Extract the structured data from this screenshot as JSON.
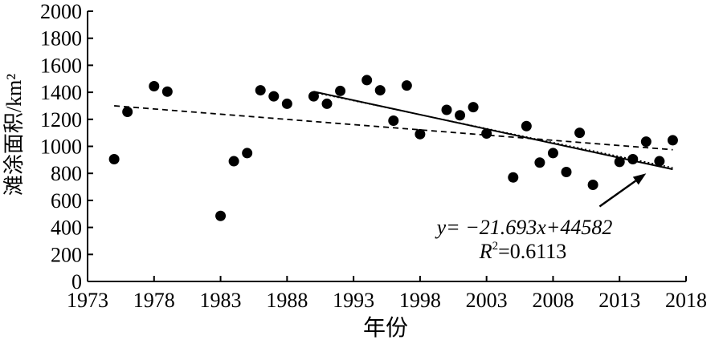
{
  "chart_data": {
    "type": "scatter",
    "xlabel": "年份",
    "ylabel": "滩涂面积/km²",
    "xlim": [
      1973,
      2018
    ],
    "ylim": [
      0,
      2000
    ],
    "x_ticks": [
      1973,
      1978,
      1983,
      1988,
      1993,
      1998,
      2003,
      2008,
      2013,
      2018
    ],
    "y_ticks": [
      0,
      200,
      400,
      600,
      800,
      1000,
      1200,
      1400,
      1600,
      1800,
      2000
    ],
    "grid": false,
    "points": [
      {
        "x": 1975,
        "y": 905
      },
      {
        "x": 1976,
        "y": 1255
      },
      {
        "x": 1978,
        "y": 1445
      },
      {
        "x": 1979,
        "y": 1405
      },
      {
        "x": 1983,
        "y": 485
      },
      {
        "x": 1984,
        "y": 890
      },
      {
        "x": 1985,
        "y": 950
      },
      {
        "x": 1986,
        "y": 1415
      },
      {
        "x": 1987,
        "y": 1370
      },
      {
        "x": 1988,
        "y": 1315
      },
      {
        "x": 1990,
        "y": 1370
      },
      {
        "x": 1991,
        "y": 1315
      },
      {
        "x": 1992,
        "y": 1410
      },
      {
        "x": 1994,
        "y": 1490
      },
      {
        "x": 1995,
        "y": 1415
      },
      {
        "x": 1996,
        "y": 1190
      },
      {
        "x": 1997,
        "y": 1450
      },
      {
        "x": 1998,
        "y": 1090
      },
      {
        "x": 2000,
        "y": 1270
      },
      {
        "x": 2001,
        "y": 1230
      },
      {
        "x": 2002,
        "y": 1290
      },
      {
        "x": 2003,
        "y": 1095
      },
      {
        "x": 2005,
        "y": 770
      },
      {
        "x": 2006,
        "y": 1150
      },
      {
        "x": 2007,
        "y": 880
      },
      {
        "x": 2008,
        "y": 950
      },
      {
        "x": 2009,
        "y": 810
      },
      {
        "x": 2010,
        "y": 1100
      },
      {
        "x": 2011,
        "y": 715
      },
      {
        "x": 2013,
        "y": 885
      },
      {
        "x": 2014,
        "y": 905
      },
      {
        "x": 2015,
        "y": 1035
      },
      {
        "x": 2016,
        "y": 890
      },
      {
        "x": 2017,
        "y": 1045
      }
    ],
    "trend_all": {
      "style": "dashed",
      "x": [
        1975,
        2017
      ],
      "y": [
        1300,
        975
      ]
    },
    "trend_recent_solid": {
      "style": "solid",
      "x": [
        1990,
        2017
      ],
      "y": [
        1405,
        830
      ]
    },
    "trend_recent_dotted": {
      "style": "dotted",
      "x": [
        1990,
        2017
      ],
      "y": [
        1400,
        842
      ]
    },
    "annotation": {
      "equation": "y= −21.693x+44582",
      "r2_label": "R",
      "r2_sup": "2",
      "r2_value": "=0.6113",
      "arrow_from": {
        "x": 2011.5,
        "y": 555
      },
      "arrow_to": {
        "x": 2015,
        "y": 800
      }
    }
  }
}
